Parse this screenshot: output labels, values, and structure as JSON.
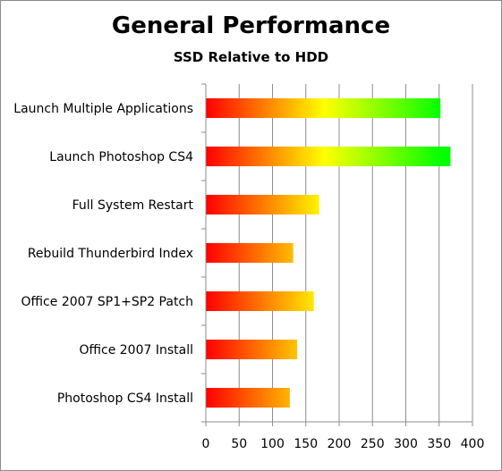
{
  "chart_data": {
    "type": "bar",
    "orientation": "horizontal",
    "title": "General Performance",
    "subtitle": "SSD Relative to HDD",
    "categories": [
      "Launch Multiple Applications",
      "Launch Photoshop CS4",
      "Full System Restart",
      "Rebuild Thunderbird Index",
      "Office 2007 SP1+SP2 Patch",
      "Office 2007 Install",
      "Photoshop CS4 Install"
    ],
    "values": [
      352,
      367,
      170,
      131,
      162,
      137,
      126
    ],
    "xlim": [
      0,
      400
    ],
    "xticks": [
      "0",
      "50",
      "100",
      "150",
      "200",
      "250",
      "300",
      "350",
      "400"
    ],
    "grid": "vertical",
    "legend": "none",
    "bar_gradient": [
      "#ff0000",
      "#ffff00",
      "#00ff00"
    ]
  }
}
